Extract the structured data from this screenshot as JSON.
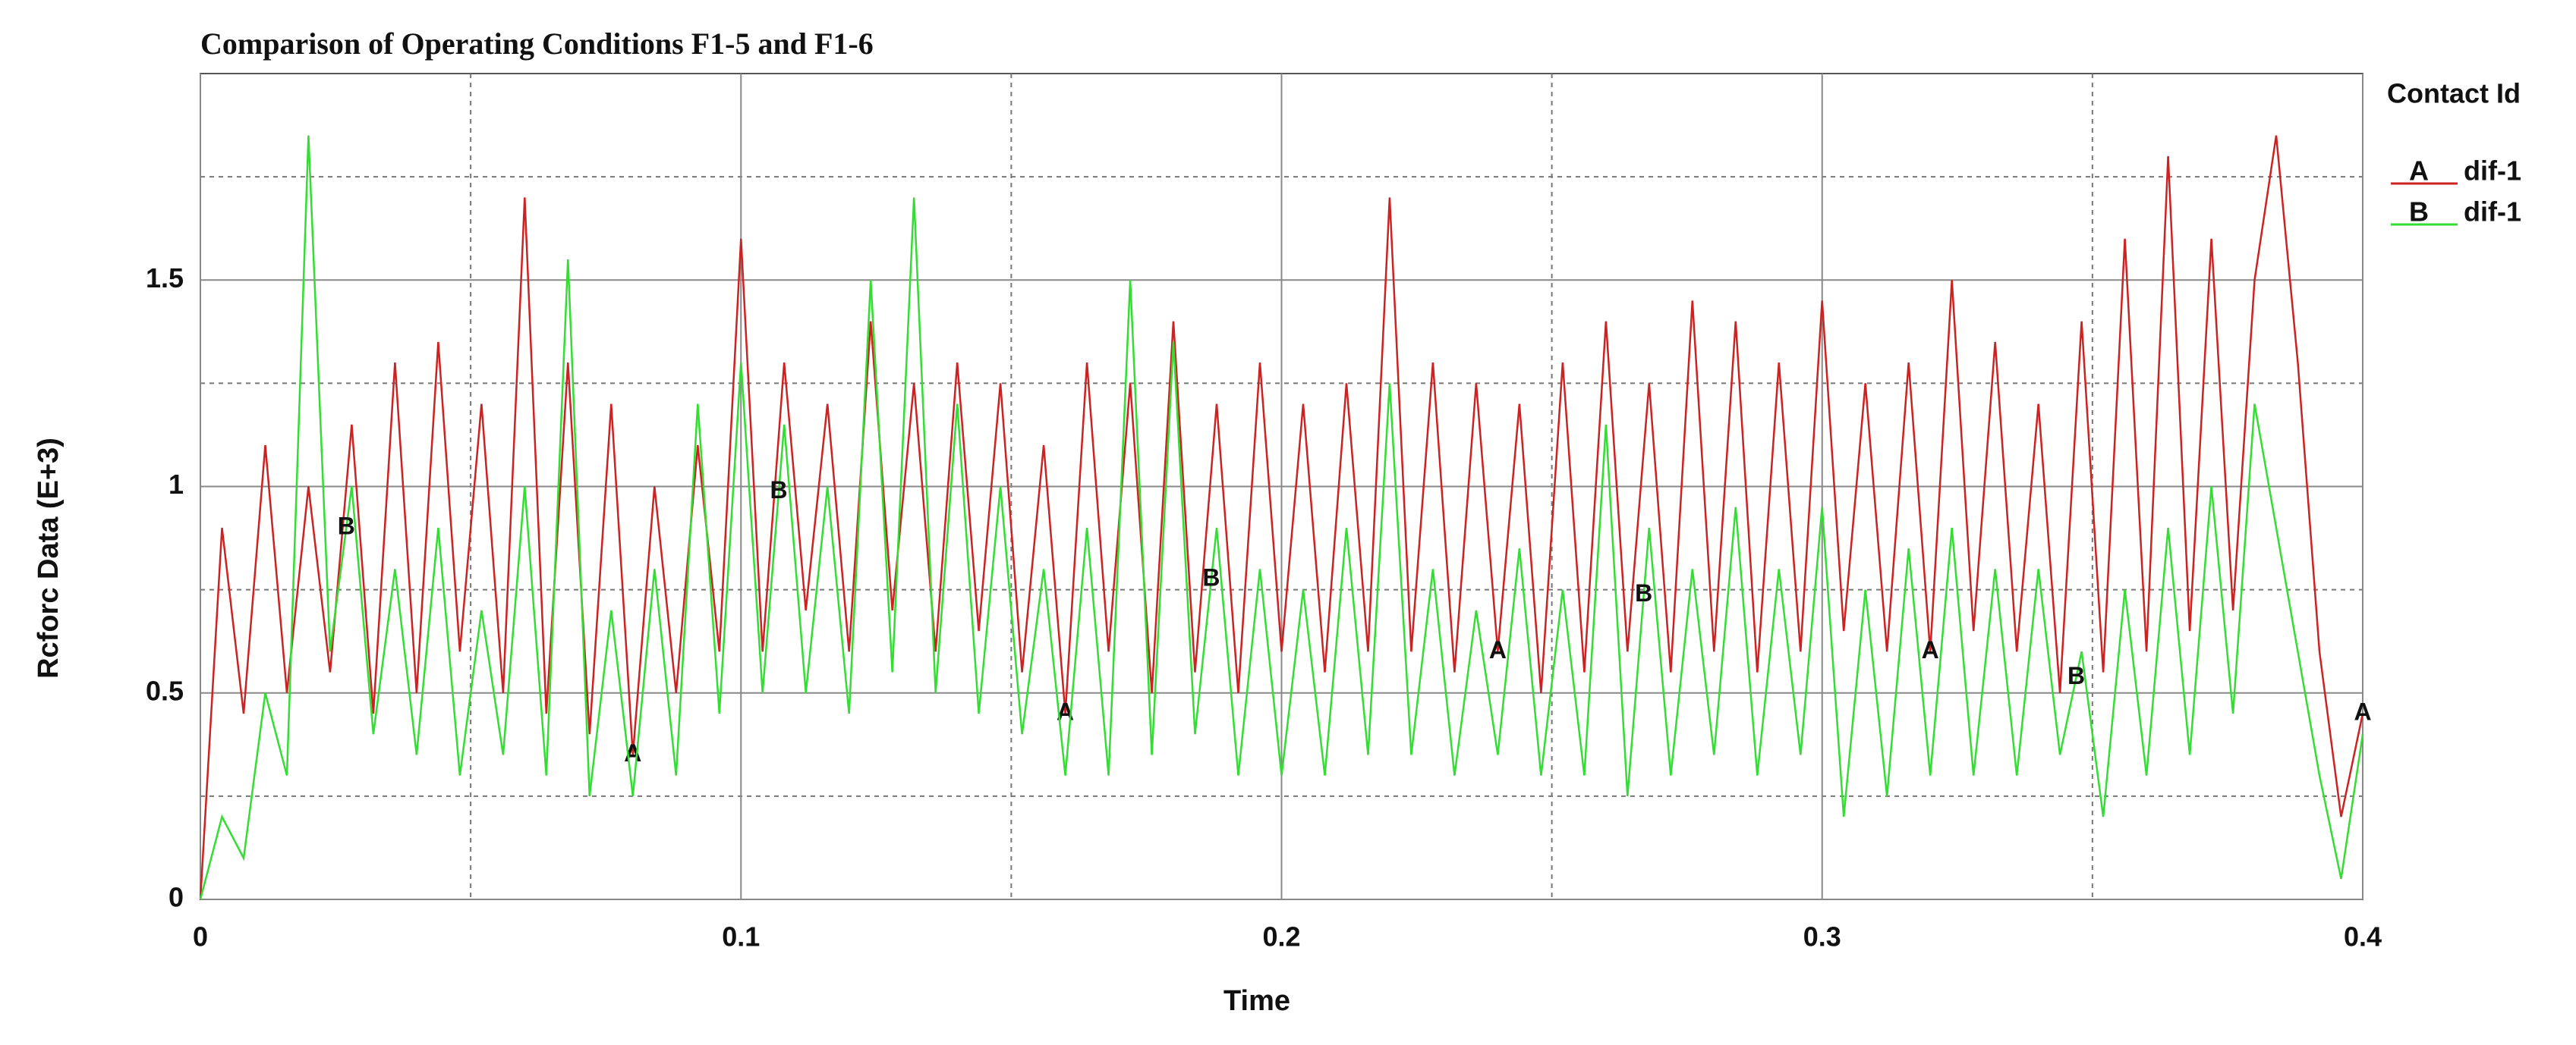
{
  "chart_data": {
    "type": "line",
    "title": "Comparison of Operating Conditions F1-5 and F1-6",
    "x_label": "Time",
    "y_label": "Rcforc Data (E+3)",
    "legend_title": "Contact Id",
    "legend": "right",
    "xlim": [
      0,
      0.4
    ],
    "ylim": [
      0,
      2
    ],
    "xticks": [
      0,
      0.1,
      0.2,
      0.3,
      0.4
    ],
    "yticks": [
      0,
      0.5,
      1,
      1.5
    ],
    "xminor": [
      0.05,
      0.15,
      0.25,
      0.35
    ],
    "yminor": [
      0.25,
      0.75,
      1.25,
      1.75
    ],
    "grid": true,
    "x": [
      0,
      0.004,
      0.008,
      0.012,
      0.016,
      0.02,
      0.024,
      0.028,
      0.032,
      0.036,
      0.04,
      0.044,
      0.048,
      0.052,
      0.056,
      0.06,
      0.064,
      0.068,
      0.072,
      0.076,
      0.08,
      0.084,
      0.088,
      0.092,
      0.096,
      0.1,
      0.104,
      0.108,
      0.112,
      0.116,
      0.12,
      0.124,
      0.128,
      0.132,
      0.136,
      0.14,
      0.144,
      0.148,
      0.152,
      0.156,
      0.16,
      0.164,
      0.168,
      0.172,
      0.176,
      0.18,
      0.184,
      0.188,
      0.192,
      0.196,
      0.2,
      0.204,
      0.208,
      0.212,
      0.216,
      0.22,
      0.224,
      0.228,
      0.232,
      0.236,
      0.24,
      0.244,
      0.248,
      0.252,
      0.256,
      0.26,
      0.264,
      0.268,
      0.272,
      0.276,
      0.28,
      0.284,
      0.288,
      0.292,
      0.296,
      0.3,
      0.304,
      0.308,
      0.312,
      0.316,
      0.32,
      0.324,
      0.328,
      0.332,
      0.336,
      0.34,
      0.344,
      0.348,
      0.352,
      0.356,
      0.36,
      0.364,
      0.368,
      0.372,
      0.376,
      0.38,
      0.384,
      0.388,
      0.392,
      0.396,
      0.4
    ],
    "series": [
      {
        "symbol": "A",
        "name": "dif-1",
        "color": "#cc2222",
        "symbol_x": [
          0.08,
          0.16,
          0.24,
          0.32,
          0.4
        ],
        "values": [
          0,
          0.9,
          0.45,
          1.1,
          0.5,
          1.0,
          0.55,
          1.15,
          0.45,
          1.3,
          0.5,
          1.35,
          0.6,
          1.2,
          0.5,
          1.7,
          0.45,
          1.3,
          0.4,
          1.2,
          0.35,
          1.0,
          0.5,
          1.1,
          0.6,
          1.6,
          0.6,
          1.3,
          0.7,
          1.2,
          0.6,
          1.4,
          0.7,
          1.25,
          0.6,
          1.3,
          0.65,
          1.25,
          0.55,
          1.1,
          0.45,
          1.3,
          0.6,
          1.25,
          0.5,
          1.4,
          0.55,
          1.2,
          0.5,
          1.3,
          0.6,
          1.2,
          0.55,
          1.25,
          0.6,
          1.7,
          0.6,
          1.3,
          0.55,
          1.25,
          0.6,
          1.2,
          0.5,
          1.3,
          0.55,
          1.4,
          0.6,
          1.25,
          0.55,
          1.45,
          0.6,
          1.4,
          0.55,
          1.3,
          0.6,
          1.45,
          0.65,
          1.25,
          0.6,
          1.3,
          0.6,
          1.5,
          0.65,
          1.35,
          0.6,
          1.2,
          0.5,
          1.4,
          0.55,
          1.6,
          0.6,
          1.8,
          0.65,
          1.6,
          0.7,
          1.5,
          1.85,
          1.3,
          0.6,
          0.2,
          0.45
        ]
      },
      {
        "symbol": "B",
        "name": "dif-1",
        "color": "#33dd33",
        "symbol_x": [
          0.027,
          0.107,
          0.187,
          0.267,
          0.347
        ],
        "values": [
          0,
          0.2,
          0.1,
          0.5,
          0.3,
          1.85,
          0.6,
          1.0,
          0.4,
          0.8,
          0.35,
          0.9,
          0.3,
          0.7,
          0.35,
          1.0,
          0.3,
          1.55,
          0.25,
          0.7,
          0.25,
          0.8,
          0.3,
          1.2,
          0.45,
          1.3,
          0.5,
          1.15,
          0.5,
          1.0,
          0.45,
          1.5,
          0.55,
          1.7,
          0.5,
          1.2,
          0.45,
          1.0,
          0.4,
          0.8,
          0.3,
          0.9,
          0.3,
          1.5,
          0.35,
          1.35,
          0.4,
          0.9,
          0.3,
          0.8,
          0.3,
          0.75,
          0.3,
          0.9,
          0.35,
          1.25,
          0.35,
          0.8,
          0.3,
          0.7,
          0.35,
          0.85,
          0.3,
          0.75,
          0.3,
          1.15,
          0.25,
          0.9,
          0.3,
          0.8,
          0.35,
          0.95,
          0.3,
          0.8,
          0.35,
          0.95,
          0.2,
          0.75,
          0.25,
          0.85,
          0.3,
          0.9,
          0.3,
          0.8,
          0.3,
          0.8,
          0.35,
          0.6,
          0.2,
          0.75,
          0.3,
          0.9,
          0.35,
          1.0,
          0.45,
          1.2,
          0.9,
          0.6,
          0.3,
          0.05,
          0.4
        ]
      }
    ]
  }
}
